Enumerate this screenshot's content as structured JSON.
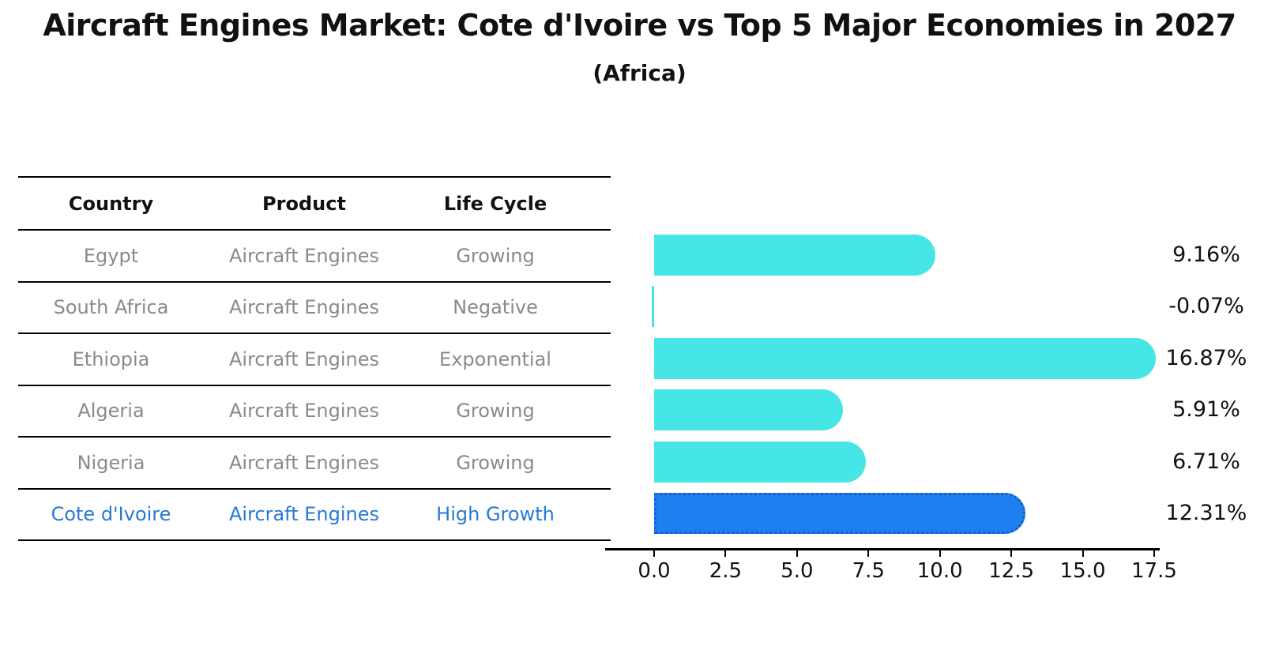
{
  "title": "Aircraft Engines Market: Cote d'Ivoire vs Top 5 Major Economies in 2027",
  "subtitle": "(Africa)",
  "colors": {
    "bar": "#47e6e6",
    "highlight_bar": "#1e80f0",
    "highlight_border": "#1a5ecc",
    "highlight_text": "#2779d6",
    "cell_text": "#8a8a8a",
    "header_text": "#111111"
  },
  "table": {
    "headers": [
      "Country",
      "Product",
      "Life Cycle"
    ],
    "rows": [
      {
        "country": "Egypt",
        "product": "Aircraft Engines",
        "life_cycle": "Growing",
        "highlight": false
      },
      {
        "country": "South Africa",
        "product": "Aircraft Engines",
        "life_cycle": "Negative",
        "highlight": false
      },
      {
        "country": "Ethiopia",
        "product": "Aircraft Engines",
        "life_cycle": "Exponential",
        "highlight": false
      },
      {
        "country": "Algeria",
        "product": "Aircraft Engines",
        "life_cycle": "Growing",
        "highlight": false
      },
      {
        "country": "Nigeria",
        "product": "Aircraft Engines",
        "life_cycle": "Growing",
        "highlight": false
      },
      {
        "country": "Cote d'Ivoire",
        "product": "Aircraft Engines",
        "life_cycle": "High Growth",
        "highlight": true
      }
    ]
  },
  "chart_data": {
    "type": "bar",
    "orientation": "horizontal",
    "title": "Aircraft Engines Market: Cote d'Ivoire vs Top 5 Major Economies in 2027 (Africa)",
    "categories": [
      "Egypt",
      "South Africa",
      "Ethiopia",
      "Algeria",
      "Nigeria",
      "Cote d'Ivoire"
    ],
    "values": [
      9.16,
      -0.07,
      16.87,
      5.91,
      6.71,
      12.31
    ],
    "value_labels": [
      "9.16%",
      "-0.07%",
      "16.87%",
      "5.91%",
      "6.71%",
      "12.31%"
    ],
    "highlight_index": 5,
    "xlim": [
      0,
      17.5
    ],
    "x_ticks": [
      0.0,
      2.5,
      5.0,
      7.5,
      10.0,
      12.5,
      15.0,
      17.5
    ],
    "x_tick_labels": [
      "0.0",
      "2.5",
      "5.0",
      "7.5",
      "10.0",
      "12.5",
      "15.0",
      "17.5"
    ],
    "grid": false,
    "legend": false
  }
}
